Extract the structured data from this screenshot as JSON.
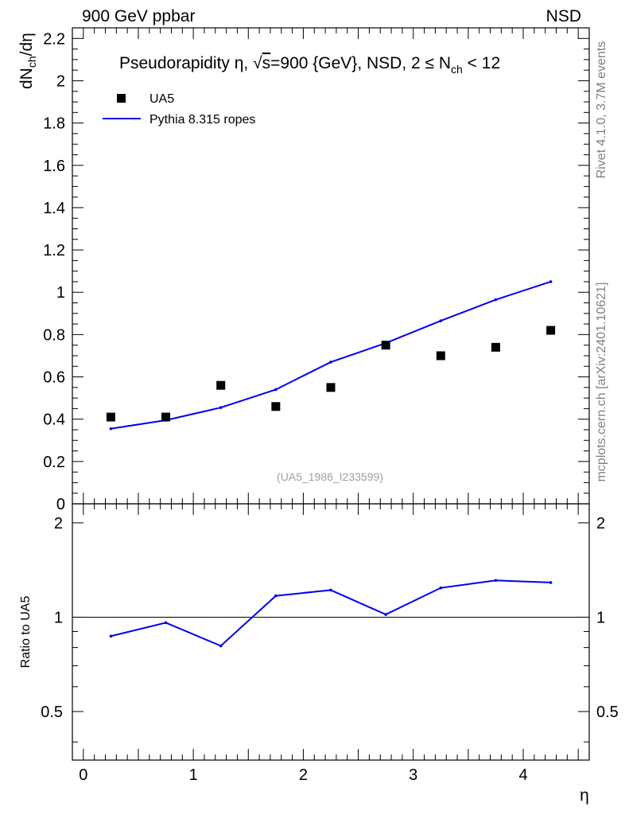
{
  "header": {
    "left": "900 GeV ppbar",
    "right": "NSD"
  },
  "side_labels": {
    "rivet": "Rivet 4.1.0,  3.7M events",
    "mcplots": "mcplots.cern.ch [arXiv:2401.10621]"
  },
  "chart_data": {
    "type": "scatter",
    "title_parts": {
      "pre": "Pseudorapidity η, √",
      "overline": "s",
      "mid": "=900 {GeV}, NSD, 2 ≤ N",
      "sub": "ch",
      "post": " < 12"
    },
    "ylabel_parts": {
      "pre": "dN",
      "sub": "ch",
      "post": "/dη"
    },
    "xlabel": "η",
    "ratio_ylabel": "Ratio to UA5",
    "watermark": "(UA5_1986_I233599)",
    "xlim": [
      -0.1,
      4.6
    ],
    "ylim": [
      0,
      2.25
    ],
    "ratio_ylim": [
      0.35,
      2.3
    ],
    "x_ticks": [
      0,
      1,
      2,
      3,
      4
    ],
    "y_ticks": [
      0,
      0.2,
      0.4,
      0.6,
      0.8,
      1,
      1.2,
      1.4,
      1.6,
      1.8,
      2,
      2.2
    ],
    "y_tick_labels": [
      "0",
      "0.2",
      "0.4",
      "0.6",
      "0.8",
      "1",
      "1.2",
      "1.4",
      "1.6",
      "1.8",
      "2",
      "2.2"
    ],
    "ratio_ticks": [
      0.5,
      1,
      2
    ],
    "ratio_tick_labels": [
      "0.5",
      "1",
      "2"
    ],
    "legend": {
      "position": "top-left",
      "entries": [
        "UA5",
        "Pythia 8.315 ropes"
      ]
    },
    "series": [
      {
        "name": "UA5",
        "style": "markers",
        "color": "#000000",
        "x": [
          0.25,
          0.75,
          1.25,
          1.75,
          2.25,
          2.75,
          3.25,
          3.75,
          4.25
        ],
        "values": [
          0.41,
          0.41,
          0.56,
          0.46,
          0.55,
          0.75,
          0.7,
          0.74,
          0.82
        ]
      },
      {
        "name": "Pythia 8.315 ropes",
        "style": "line",
        "color": "#0000ee",
        "x": [
          0.25,
          0.75,
          1.25,
          1.75,
          2.25,
          2.75,
          3.25,
          3.75,
          4.25
        ],
        "values": [
          0.355,
          0.395,
          0.455,
          0.54,
          0.67,
          0.76,
          0.865,
          0.965,
          1.05
        ]
      }
    ],
    "ratio": {
      "reference": 1,
      "x": [
        0.25,
        0.75,
        1.25,
        1.75,
        2.25,
        2.75,
        3.25,
        3.75,
        4.25
      ],
      "values": [
        0.87,
        0.96,
        0.81,
        1.17,
        1.22,
        1.02,
        1.24,
        1.31,
        1.29
      ]
    }
  }
}
